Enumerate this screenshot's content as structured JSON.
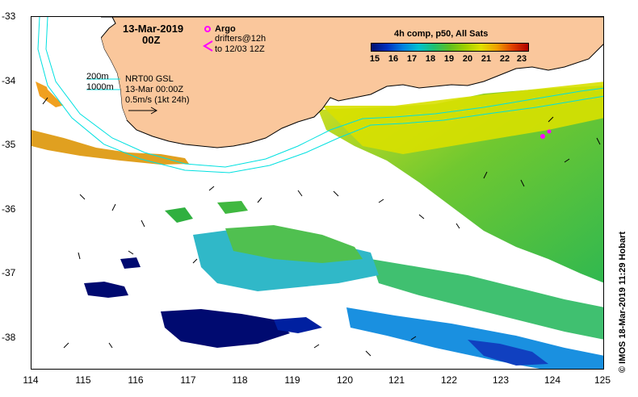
{
  "title": {
    "date": "13-Mar-2019",
    "hour": "00Z"
  },
  "legend": {
    "argo_label": "Argo",
    "drifters_line1": "drifters@12h",
    "drifters_line2": "to 12/03 12Z",
    "argo_color": "#ff00ff"
  },
  "isobaths": {
    "line1": "200m",
    "line2": "1000m",
    "color": "#00e0e0"
  },
  "info": {
    "line1": "NRT00 GSL",
    "line2": "13-Mar 00:00Z",
    "line3": "0.5m/s (1kt 24h)"
  },
  "colorbar": {
    "title": "4h comp, p50, All Sats",
    "ticks": [
      "15",
      "16",
      "17",
      "18",
      "19",
      "20",
      "21",
      "22",
      "23"
    ]
  },
  "axes": {
    "lat_labels": [
      "-33",
      "-34",
      "-35",
      "-36",
      "-37",
      "-38"
    ],
    "lon_labels": [
      "114",
      "115",
      "116",
      "117",
      "118",
      "119",
      "120",
      "121",
      "122",
      "123",
      "124",
      "125"
    ]
  },
  "credit": "© IMOS 18-Mar-2019 11:29 Hobart",
  "colors": {
    "land": "#fac79c",
    "coast": "#000000"
  }
}
